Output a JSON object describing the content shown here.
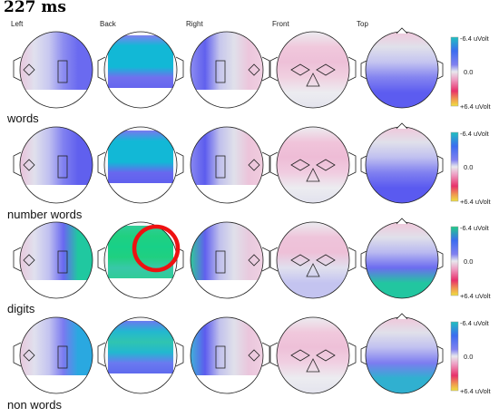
{
  "time_label": "227 ms",
  "views": [
    "Left",
    "Back",
    "Right",
    "Front",
    "Top"
  ],
  "colorbar": {
    "top": "-6.4 uVolt",
    "mid": "0.0",
    "bottom": "+6.4 uVolt"
  },
  "conditions": [
    {
      "label": "words",
      "maps": {
        "left": [
          "#e8c6dc",
          "#e0e0ee",
          "#c8c8f0",
          "#8c8cf0",
          "#6a6af0",
          "#6a6af0"
        ],
        "back": [
          "#8080f0",
          "#12b8d6",
          "#12b8d6",
          "#12b8d6",
          "#7070ee",
          "#6666ee"
        ],
        "right": [
          "#8c8cf0",
          "#6060ee",
          "#c6c6ec",
          "#e0e0ea",
          "#ecc6dc",
          "#f0d0e2"
        ],
        "front": [
          "#ececf0",
          "#f0c8dc",
          "#eec0d8",
          "#f0d0e0",
          "#ececf0",
          "#e4e4ee"
        ],
        "top": [
          "#f0c8dc",
          "#e0e0ea",
          "#c4c4f0",
          "#8484f0",
          "#5c5cf0",
          "#5c5cf0"
        ]
      }
    },
    {
      "label": "number words",
      "maps": {
        "left": [
          "#eac2da",
          "#e0e0ec",
          "#c0c0f0",
          "#8080f0",
          "#6060ee",
          "#6060ee"
        ],
        "back": [
          "#7878f0",
          "#12b8d6",
          "#12b8d6",
          "#12b8d6",
          "#6868ee",
          "#6060ee"
        ],
        "right": [
          "#8888f0",
          "#5c5cee",
          "#c0c0ec",
          "#e0e0ea",
          "#ecc4da",
          "#f0ccde"
        ],
        "front": [
          "#ececf0",
          "#f0c4da",
          "#eebcd6",
          "#f0cce0",
          "#ececf0",
          "#e2e2ee"
        ],
        "top": [
          "#f0c6da",
          "#e0e0ea",
          "#c0c0f0",
          "#8080f0",
          "#5a5af0",
          "#5a5af0"
        ]
      }
    },
    {
      "label": "digits",
      "maps": {
        "left": [
          "#e8c8dc",
          "#e0e0ee",
          "#c0c0f0",
          "#6868f0",
          "#20c8a0",
          "#20c8a0"
        ],
        "back": [
          "#30cc98",
          "#20d080",
          "#18d088",
          "#20d080",
          "#38c8a8",
          "#30cc98"
        ],
        "right": [
          "#30c898",
          "#6060ee",
          "#c0c0ec",
          "#e0e0ea",
          "#e8cade",
          "#f0d0e2"
        ],
        "front": [
          "#ececf0",
          "#eec4da",
          "#eec0d8",
          "#e0e0ee",
          "#c4c4f0",
          "#c4c4f0"
        ],
        "top": [
          "#f0c6da",
          "#e0e0ea",
          "#b8b8f0",
          "#6c6cf0",
          "#22c6a0",
          "#22c6a0"
        ]
      }
    },
    {
      "label": "non words",
      "maps": {
        "left": [
          "#e8c8dc",
          "#e0e0ee",
          "#c4c4f0",
          "#7a7af0",
          "#2aa8e0",
          "#2aa8e0"
        ],
        "back": [
          "#6a7af0",
          "#22b8d0",
          "#30c4b0",
          "#22b8d0",
          "#6a7af0",
          "#5f6aee"
        ],
        "right": [
          "#40b0d8",
          "#5c5cee",
          "#c2c2ec",
          "#e0e0ea",
          "#eac6dc",
          "#f0d0e2"
        ],
        "front": [
          "#ececf0",
          "#f0c8dc",
          "#eec0d8",
          "#f0d0e2",
          "#ececf0",
          "#e4e4ee"
        ],
        "top": [
          "#f0c6da",
          "#e0e0ea",
          "#c0c0f0",
          "#7c7cf0",
          "#30b0d0",
          "#30b0d0"
        ]
      }
    }
  ],
  "colors": {
    "highlight_circle": "#ee1111",
    "outline": "#222222"
  }
}
